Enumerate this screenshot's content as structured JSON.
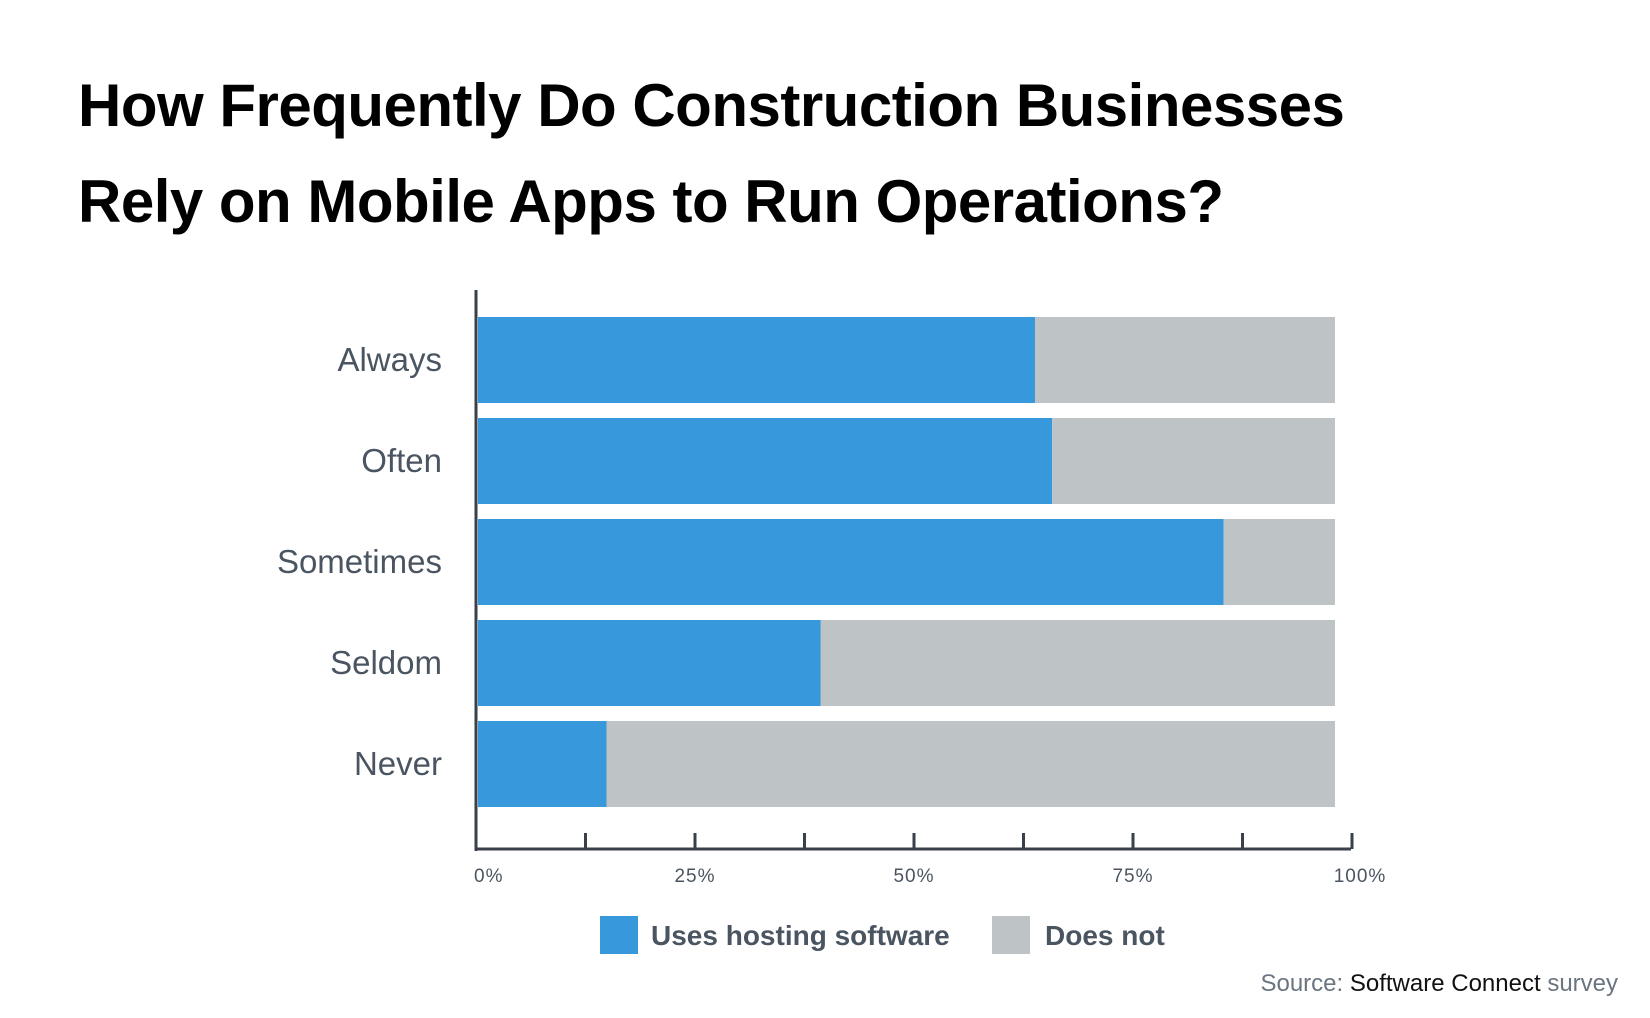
{
  "title_line1": "How Frequently Do Construction Businesses",
  "title_line2": "Rely on Mobile Apps to Run Operations?",
  "source": {
    "prefix": "Source:",
    "name": "Software Connect",
    "suffix": "survey"
  },
  "colors": {
    "uses": "#3799db",
    "does_not": "#bec3c6",
    "axis": "#3a4049",
    "text": "#4a5561"
  },
  "chart_data": {
    "type": "bar",
    "orientation": "horizontal",
    "stacked": true,
    "categories": [
      "Always",
      "Often",
      "Sometimes",
      "Seldom",
      "Never"
    ],
    "series": [
      {
        "name": "Uses hosting software",
        "values": [
          65,
          67,
          87,
          40,
          15
        ]
      },
      {
        "name": "Does not",
        "values": [
          35,
          33,
          13,
          60,
          85
        ]
      }
    ],
    "x_ticks": [
      "0%",
      "25%",
      "50%",
      "75%",
      "100%"
    ],
    "xlim": [
      0,
      100
    ],
    "grid": false,
    "legend": "bottom"
  }
}
